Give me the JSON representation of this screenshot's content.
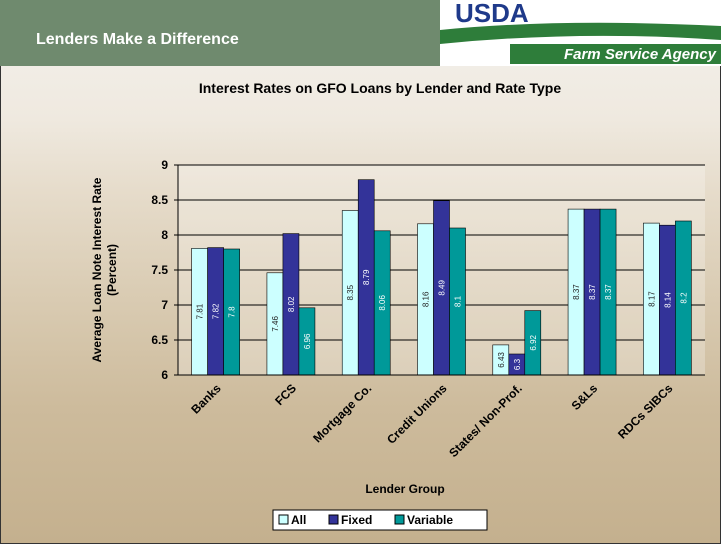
{
  "header": {
    "title": "Lenders Make a Difference",
    "logo": "USDA",
    "agency": "Farm Service Agency"
  },
  "chart_data": {
    "type": "bar",
    "title": "Interest Rates on GFO Loans by Lender and Rate Type",
    "x_label": "Lender Group",
    "y_label": [
      "Average Loan Note Interest Rate",
      "(Percent)"
    ],
    "categories": [
      "Banks",
      "FCS",
      "Mortgage Co.",
      "Credit Unions",
      "States/ Non-Prof.",
      "S&Ls",
      "RDCs SIBCs"
    ],
    "series": [
      {
        "name": "All",
        "color": "#ccffff",
        "values": [
          7.81,
          7.46,
          8.35,
          8.16,
          6.43,
          8.37,
          8.17
        ]
      },
      {
        "name": "Fixed",
        "color": "#333399",
        "values": [
          7.82,
          8.02,
          8.79,
          8.49,
          6.3,
          8.37,
          8.14
        ]
      },
      {
        "name": "Variable",
        "color": "#009999",
        "values": [
          7.8,
          6.96,
          8.06,
          8.1,
          6.92,
          8.37,
          8.2
        ]
      }
    ],
    "ylim": [
      6,
      9
    ],
    "yticks": [
      6,
      6.5,
      7,
      7.5,
      8,
      8.5,
      9
    ],
    "grid": true,
    "legend": "bottom"
  }
}
